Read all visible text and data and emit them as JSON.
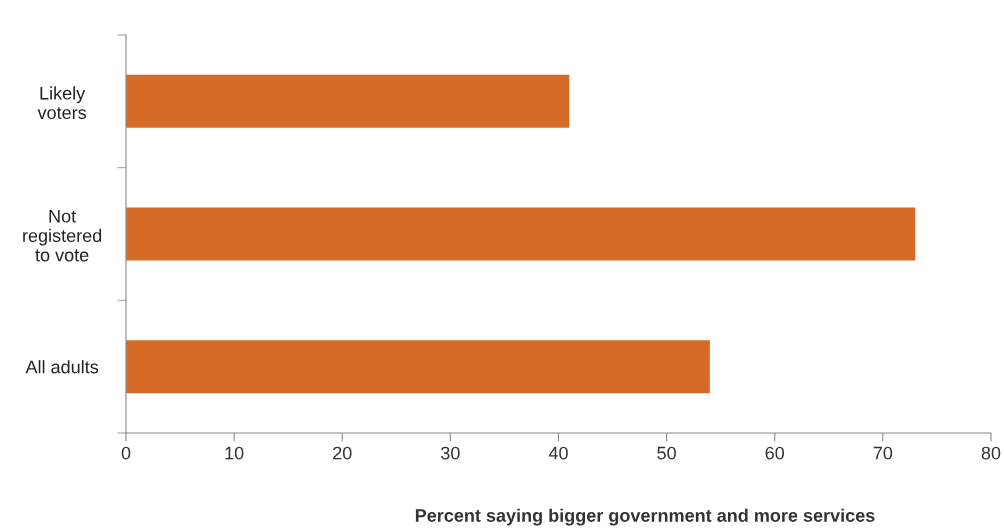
{
  "chart_data": {
    "type": "bar",
    "orientation": "horizontal",
    "categories": [
      "Likely\nvoters",
      "Not\nregistered\nto vote",
      "All adults"
    ],
    "values": [
      41,
      73,
      54
    ],
    "color": "#d56b27",
    "xlim": [
      0,
      80
    ],
    "xticks": [
      0,
      10,
      20,
      30,
      40,
      50,
      60,
      70,
      80
    ],
    "xlabel": "Percent saying bigger government and more services",
    "grid": false
  }
}
